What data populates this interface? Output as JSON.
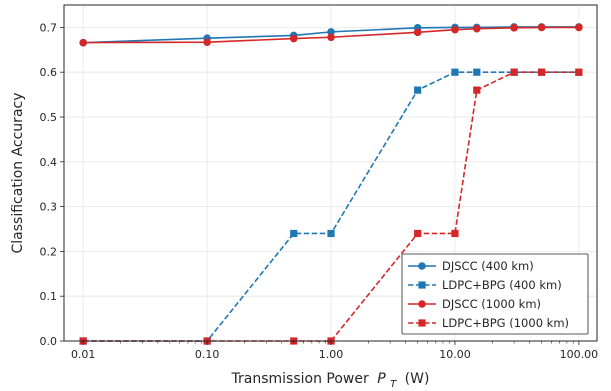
{
  "chart_data": {
    "type": "line",
    "xlabel": "Transmission Power",
    "xlabel_symbol": "P",
    "xlabel_subscript": "T",
    "xlabel_unit": "(W)",
    "ylabel": "Classification Accuracy",
    "xscale": "log",
    "xlim": [
      0.007,
      140
    ],
    "ylim": [
      0,
      0.75
    ],
    "xticks": [
      0.01,
      0.1,
      1,
      10,
      100
    ],
    "xtick_labels": [
      "0.01",
      "0.10",
      "1.00",
      "10.00",
      "100.00"
    ],
    "yticks": [
      0,
      0.1,
      0.2,
      0.3,
      0.4,
      0.5,
      0.6,
      0.7
    ],
    "ytick_labels": [
      "0.0",
      "0.1",
      "0.2",
      "0.3",
      "0.4",
      "0.5",
      "0.6",
      "0.7"
    ],
    "grid": true,
    "legend_position": "lower-right",
    "series": [
      {
        "name": "DJSCC (400 km)",
        "color": "#1f77b4",
        "line": "solid",
        "marker": "circle",
        "x": [
          0.01,
          0.1,
          0.5,
          1,
          5,
          10,
          15,
          30,
          50,
          100
        ],
        "y": [
          0.666,
          0.676,
          0.682,
          0.69,
          0.699,
          0.7,
          0.7,
          0.701,
          0.701,
          0.701
        ]
      },
      {
        "name": "LDPC+BPG (400 km)",
        "color": "#1f77b4",
        "line": "dashed",
        "marker": "square",
        "x": [
          0.01,
          0.1,
          0.5,
          1,
          5,
          10,
          15,
          30,
          50,
          100
        ],
        "y": [
          0.0,
          0.0,
          0.24,
          0.24,
          0.56,
          0.6,
          0.6,
          0.6,
          0.6,
          0.6
        ]
      },
      {
        "name": "DJSCC (1000 km)",
        "color": "#d62728",
        "line": "solid",
        "marker": "circle",
        "x": [
          0.01,
          0.1,
          0.5,
          1,
          5,
          10,
          15,
          30,
          50,
          100
        ],
        "y": [
          0.666,
          0.667,
          0.675,
          0.678,
          0.689,
          0.695,
          0.697,
          0.699,
          0.7,
          0.7
        ]
      },
      {
        "name": "LDPC+BPG (1000 km)",
        "color": "#d62728",
        "line": "dashed",
        "marker": "square",
        "x": [
          0.01,
          0.1,
          0.5,
          1,
          5,
          10,
          15,
          30,
          50,
          100
        ],
        "y": [
          0.0,
          0.0,
          0.0,
          0.0,
          0.24,
          0.24,
          0.56,
          0.6,
          0.6,
          0.6
        ]
      }
    ]
  }
}
